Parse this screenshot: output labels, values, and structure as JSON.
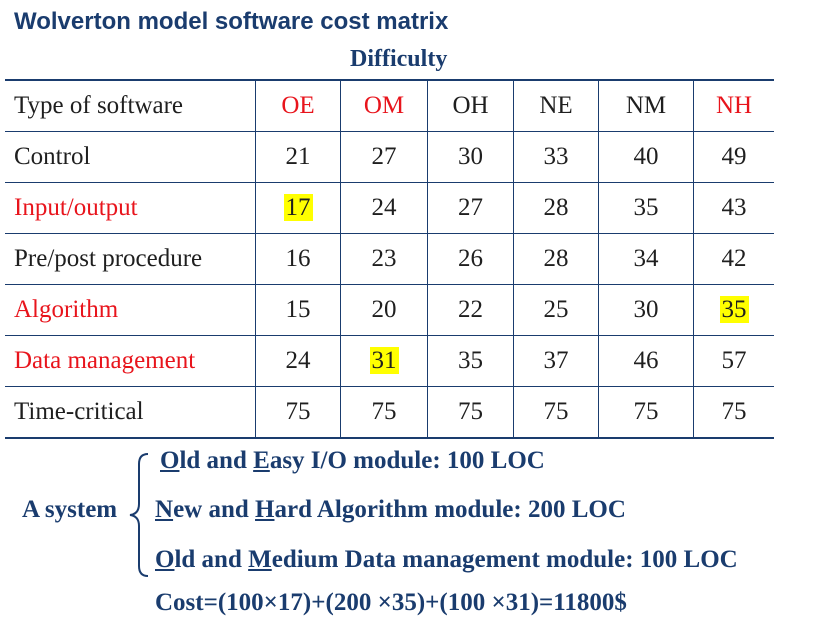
{
  "title": "Wolverton model software cost matrix",
  "subtitle": "Difficulty",
  "table": {
    "header": [
      "Type of software",
      "OE",
      "OM",
      "OH",
      "NE",
      "NM",
      "NH"
    ],
    "rows": [
      {
        "label": "Control",
        "values": [
          "21",
          "27",
          "30",
          "33",
          "40",
          "49"
        ]
      },
      {
        "label": "Input/output",
        "values": [
          "17",
          "24",
          "27",
          "28",
          "35",
          "43"
        ]
      },
      {
        "label": "Pre/post procedure",
        "values": [
          "16",
          "23",
          "26",
          "28",
          "34",
          "42"
        ]
      },
      {
        "label": "Algorithm",
        "values": [
          "15",
          "20",
          "22",
          "25",
          "30",
          "35"
        ]
      },
      {
        "label": "Data management",
        "values": [
          "24",
          "31",
          "35",
          "37",
          "46",
          "57"
        ]
      },
      {
        "label": "Time-critical",
        "values": [
          "75",
          "75",
          "75",
          "75",
          "75",
          "75"
        ]
      }
    ]
  },
  "system": {
    "label": "A system",
    "line1": {
      "o": "O",
      "ld": "ld and ",
      "e": "E",
      "rest": "asy I/O module: 100 LOC"
    },
    "line2": {
      "n": "N",
      "ew": "ew and ",
      "h": "H",
      "rest": "ard Algorithm module: 200 LOC"
    },
    "line3": {
      "o": "O",
      "ld": "ld and ",
      "m": "M",
      "rest": "edium Data management module: 100 LOC"
    },
    "cost": "Cost=(100×17)+(200 ×35)+(100 ×31)=11800$"
  },
  "colors": {
    "text_blue": "#1a3c6e",
    "red": "#e8141c",
    "highlight": "#ffff00"
  }
}
